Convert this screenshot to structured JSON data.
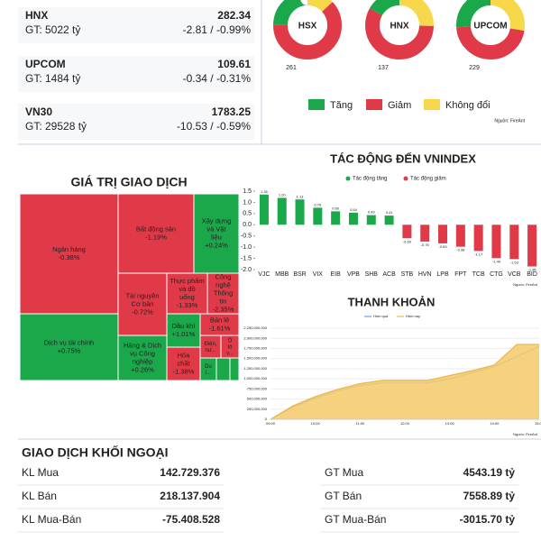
{
  "indices": [
    {
      "name": "HNX",
      "value": "282.34",
      "gt": "GT: 5022 tỷ",
      "change": "-2.81 / -0.99%"
    },
    {
      "name": "UPCOM",
      "value": "109.61",
      "gt": "GT: 1484 tỷ",
      "change": "-0.34 / -0.31%"
    },
    {
      "name": "VN30",
      "value": "1783.25",
      "gt": "GT: 29528 tỷ",
      "change": "-10.53 / -0.59%"
    }
  ],
  "breadth": {
    "type": "pie",
    "colors": [
      "#1aa84b",
      "#e03a48",
      "#f7d84a"
    ],
    "legend": [
      "Tăng",
      "Giảm",
      "Không đổi"
    ],
    "source": "Nguồn: FireAnt",
    "donuts": [
      {
        "name": "HSX",
        "values": [
          105,
          261,
          55
        ]
      },
      {
        "name": "HNX",
        "values": [
          40,
          137,
          60
        ]
      },
      {
        "name": "UPCOM",
        "values": [
          129,
          229,
          136
        ]
      }
    ]
  },
  "treemap": {
    "title": "GIÁ TRỊ GIAO DỊCH",
    "cells": [
      {
        "name": "Ngân hàng",
        "change": "-0.38%",
        "color": "#e03a48"
      },
      {
        "name": "Dịch vụ tài chính",
        "change": "+0.75%",
        "color": "#1aa84b"
      },
      {
        "name": "Bất động sản",
        "change": "-1.19%",
        "color": "#e03a48"
      },
      {
        "name": "Xây dựng và Vật liệu",
        "change": "+0.24%",
        "color": "#1aa84b"
      },
      {
        "name": "Tài nguyên Cơ bản",
        "change": "-0.72%",
        "color": "#e03a48"
      },
      {
        "name": "Thực phẩm và đồ uống",
        "change": "-1.33%",
        "color": "#e03a48"
      },
      {
        "name": "Công nghệ Thông tin",
        "change": "-2.35%",
        "color": "#e03a48"
      },
      {
        "name": "Hàng & Dịch vụ Công nghiệp",
        "change": "+0.26%",
        "color": "#1aa84b"
      },
      {
        "name": "Dầu khí",
        "change": "+1.01%",
        "color": "#1aa84b"
      },
      {
        "name": "Bán lẻ",
        "change": "-1.61%",
        "color": "#e03a48"
      },
      {
        "name": "Điện, nư...",
        "change": null,
        "color": "#e03a48"
      },
      {
        "name": "Ô tô v...",
        "change": null,
        "color": "#e03a48"
      },
      {
        "name": "Hóa chất",
        "change": "-1.38%",
        "color": "#e03a48"
      },
      {
        "name": "Du l...",
        "change": null,
        "color": "#1aa84b"
      },
      {
        "name": null,
        "change": null,
        "color": "#1aa84b"
      },
      {
        "name": null,
        "change": null,
        "color": "#1aa84b"
      }
    ]
  },
  "chart_data": [
    {
      "type": "bar",
      "title": "TÁC ĐỘNG ĐẾN VNINDEX",
      "legend": [
        "Tác động tăng",
        "Tác động giảm"
      ],
      "colors": [
        "#1aa84b",
        "#e03a48"
      ],
      "source": "Nguồn: FireAnt",
      "categories": [
        "VJC",
        "MBB",
        "BSR",
        "VIX",
        "EIB",
        "VPB",
        "SHB",
        "ACB",
        "STB",
        "HVN",
        "LPB",
        "FPT",
        "TCB",
        "CTG",
        "VCB",
        "BID"
      ],
      "values": [
        1.35,
        1.2,
        1.13,
        0.76,
        0.6,
        0.54,
        0.43,
        0.41,
        -0.6,
        -0.75,
        -0.83,
        -0.98,
        -1.17,
        -1.49,
        -1.53,
        -1.86
      ],
      "value_labels": [
        "1.35",
        "1.20",
        "1.13",
        "0.76",
        "0.60",
        "0.54",
        "0.43",
        "0.41",
        "-0.60",
        "-0.75",
        "-0.83",
        "-0.98",
        "-1.17",
        "-1.49",
        "-1.53",
        "-1.86"
      ],
      "ylim": [
        -2,
        1.5
      ],
      "yticks": [
        1.5,
        {
          "value": 1,
          "label": "1.0"
        },
        0.5,
        {
          "value": 0,
          "label": "0.0"
        },
        -0.5,
        {
          "value": -1,
          "label": "-1.0"
        },
        -1.5,
        {
          "value": -2,
          "label": "-2.0"
        }
      ]
    },
    {
      "type": "area",
      "title": "THANH KHOẢN",
      "source": "Nguồn: FireAnt",
      "x": [
        "09:00",
        null,
        "10:00",
        null,
        "11:00",
        null,
        "12:00",
        null,
        "13:00",
        null,
        "14:00",
        null,
        "15:00"
      ],
      "series": [
        {
          "name": "Hôm qua",
          "color": "#7fb6e8",
          "values": [
            0,
            300000000,
            520000000,
            700000000,
            830000000,
            900000000,
            900000000,
            900000000,
            1000000000,
            1150000000,
            1300000000,
            1550000000,
            1800000000
          ]
        },
        {
          "name": "Hôm nay",
          "color": "#f5c96a",
          "values": [
            0,
            330000000,
            560000000,
            740000000,
            880000000,
            960000000,
            960000000,
            960000000,
            1080000000,
            1200000000,
            1340000000,
            1850000000,
            1850000000
          ]
        }
      ],
      "ylim": [
        0,
        2250000000
      ],
      "yticks": [
        {
          "value": 0,
          "label": "0"
        },
        {
          "value": 250000000,
          "label": "250,000,000"
        },
        {
          "value": 500000000,
          "label": "500,000,000"
        },
        {
          "value": 750000000,
          "label": "750,000,000"
        },
        {
          "value": 1000000000,
          "label": "1,000,000,000"
        },
        {
          "value": 1250000000,
          "label": "1,250,000,000"
        },
        {
          "value": 1500000000,
          "label": "1,500,000,000"
        },
        {
          "value": 1750000000,
          "label": "1,750,000,000"
        },
        {
          "value": 2000000000,
          "label": "2,000,000,000"
        },
        {
          "value": 2250000000,
          "label": "2,250,000,000"
        }
      ]
    }
  ],
  "foreign": {
    "title": "GIAO DỊCH KHỐI NGOẠI",
    "left": [
      {
        "label": "KL Mua",
        "value": "142.729.376",
        "color": "#1aa84b"
      },
      {
        "label": "KL Bán",
        "value": "218.137.904",
        "color": "#e03a48"
      },
      {
        "label": "KL Mua-Bán",
        "value": "-75.408.528",
        "color": "#e03a48"
      }
    ],
    "right": [
      {
        "label": "GT Mua",
        "value": "4543.19 tỷ",
        "color": "#1aa84b"
      },
      {
        "label": "GT Bán",
        "value": "7558.89 tỷ",
        "color": "#e03a48"
      },
      {
        "label": "GT Mua-Bán",
        "value": "-3015.70 tỷ",
        "color": "#e03a48"
      }
    ]
  }
}
